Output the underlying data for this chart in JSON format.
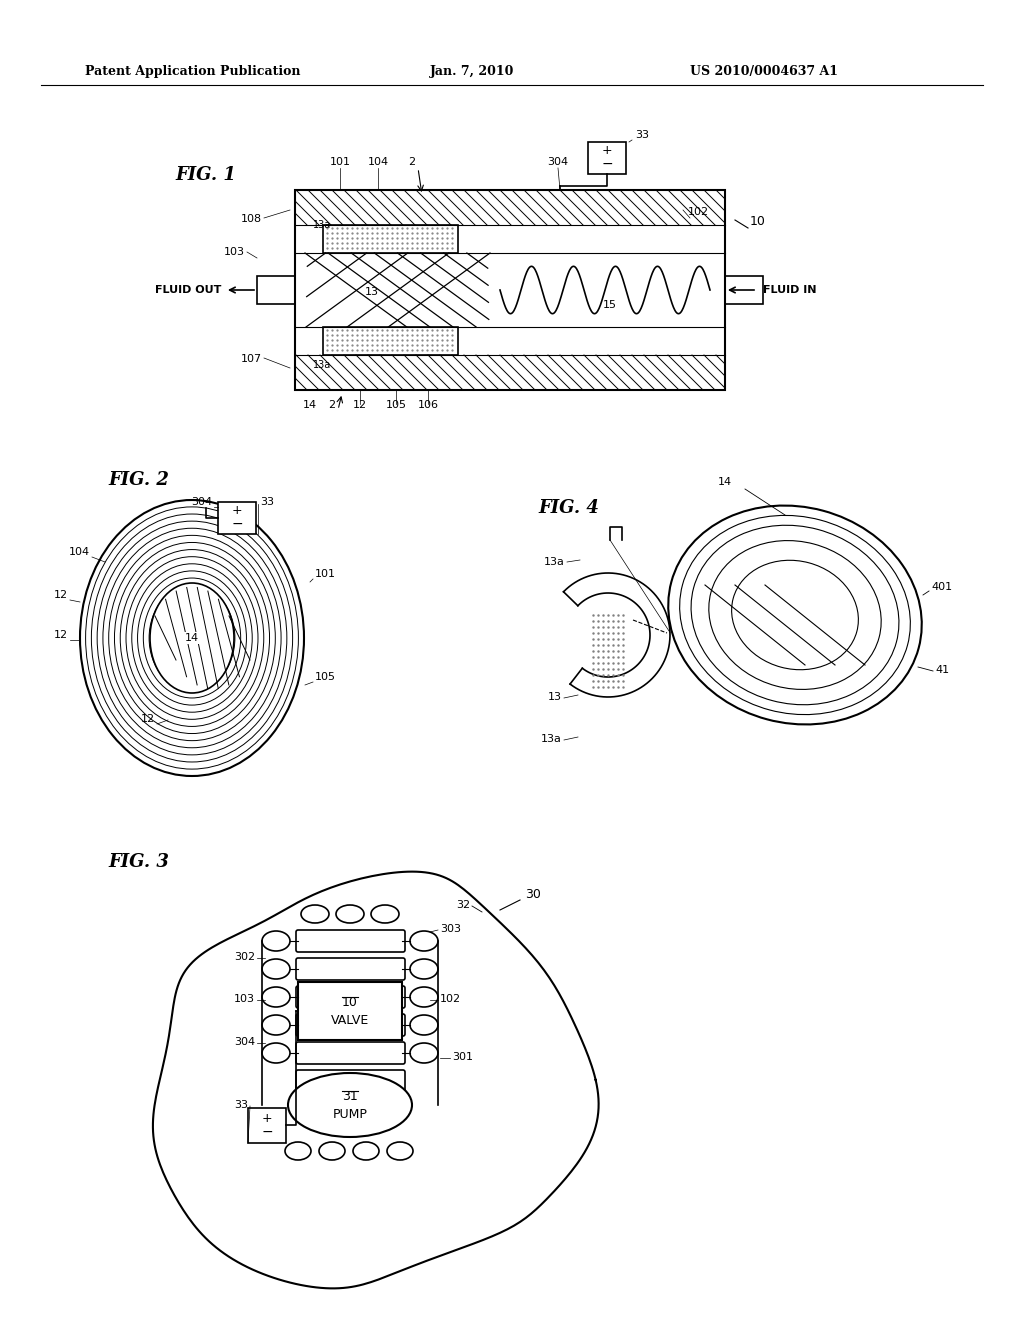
{
  "bg_color": "#ffffff",
  "line_color": "#000000",
  "header_left": "Patent Application Publication",
  "header_center": "Jan. 7, 2010",
  "header_right": "US 2010/0004637 A1",
  "fig1_label": "FIG. 1",
  "fig2_label": "FIG. 2",
  "fig3_label": "FIG. 3",
  "fig4_label": "FIG. 4",
  "ref_10": "10",
  "ref_12": "12",
  "ref_13": "13",
  "ref_13a": "13a",
  "ref_14": "14",
  "ref_15": "15",
  "ref_33": "33",
  "ref_41": "41",
  "ref_101": "101",
  "ref_102": "102",
  "ref_103": "103",
  "ref_104": "104",
  "ref_105": "105",
  "ref_106": "106",
  "ref_107": "107",
  "ref_108": "108",
  "ref_301": "301",
  "ref_302": "302",
  "ref_303": "303",
  "ref_304": "304",
  "ref_401": "401",
  "fluid_out": "FLUID OUT",
  "fluid_in": "FLUID IN",
  "valve_label": "VALVE",
  "valve_ref": "10",
  "pump_label": "PUMP",
  "pump_ref": "31",
  "ref_2": "2",
  "ref_30": "30",
  "ref_31": "31",
  "ref_32": "32"
}
